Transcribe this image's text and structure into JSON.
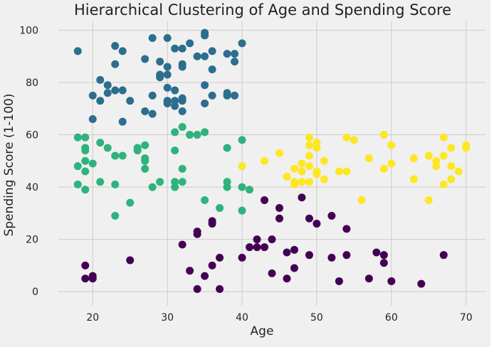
{
  "chart_data": {
    "type": "scatter",
    "title": "Hierarchical Clustering of Age and Spending Score",
    "xlabel": "Age",
    "ylabel": "Spending Score (1-100)",
    "xlim": [
      15.4,
      72.6
    ],
    "ylim": [
      -5.4,
      103.4
    ],
    "xticks": [
      "20",
      "30",
      "40",
      "50",
      "60",
      "70"
    ],
    "xtick_values": [
      20,
      30,
      40,
      50,
      60,
      70
    ],
    "yticks": [
      "0",
      "20",
      "40",
      "60",
      "80",
      "100"
    ],
    "ytick_values": [
      0,
      20,
      40,
      60,
      80,
      100
    ],
    "grid": true,
    "legend": "none",
    "background": "#f0f0f0",
    "gridColor": "#cbcbcb",
    "series": [
      {
        "color": "#2c6e8d",
        "points": [
          [
            18,
            92
          ],
          [
            20,
            75
          ],
          [
            20,
            66
          ],
          [
            21,
            81
          ],
          [
            21,
            73
          ],
          [
            22,
            79
          ],
          [
            22,
            76
          ],
          [
            23,
            94
          ],
          [
            23,
            87
          ],
          [
            23,
            77
          ],
          [
            24,
            92
          ],
          [
            24,
            77
          ],
          [
            24,
            65
          ],
          [
            25,
            73
          ],
          [
            27,
            89
          ],
          [
            27,
            69
          ],
          [
            28,
            97
          ],
          [
            28,
            75
          ],
          [
            28,
            68
          ],
          [
            29,
            88
          ],
          [
            29,
            83
          ],
          [
            29,
            82
          ],
          [
            30,
            97
          ],
          [
            30,
            86
          ],
          [
            30,
            83
          ],
          [
            30,
            78
          ],
          [
            30,
            73
          ],
          [
            30,
            72
          ],
          [
            31,
            93
          ],
          [
            31,
            77
          ],
          [
            31,
            73
          ],
          [
            31,
            71
          ],
          [
            32,
            93
          ],
          [
            32,
            87
          ],
          [
            32,
            86
          ],
          [
            32,
            74
          ],
          [
            32,
            73
          ],
          [
            32,
            69
          ],
          [
            33,
            95
          ],
          [
            34,
            90
          ],
          [
            35,
            99
          ],
          [
            35,
            98
          ],
          [
            35,
            90
          ],
          [
            35,
            79
          ],
          [
            35,
            72
          ],
          [
            36,
            92
          ],
          [
            36,
            85
          ],
          [
            36,
            75
          ],
          [
            38,
            91
          ],
          [
            38,
            76
          ],
          [
            38,
            75
          ],
          [
            39,
            91
          ],
          [
            39,
            88
          ],
          [
            39,
            75
          ],
          [
            40,
            95
          ]
        ]
      },
      {
        "color": "#2eb37c",
        "points": [
          [
            18,
            59
          ],
          [
            18,
            48
          ],
          [
            18,
            41
          ],
          [
            19,
            59
          ],
          [
            19,
            55
          ],
          [
            19,
            54
          ],
          [
            19,
            50
          ],
          [
            19,
            46
          ],
          [
            19,
            39
          ],
          [
            20,
            49
          ],
          [
            21,
            57
          ],
          [
            21,
            42
          ],
          [
            22,
            55
          ],
          [
            23,
            52
          ],
          [
            23,
            41
          ],
          [
            23,
            29
          ],
          [
            24,
            52
          ],
          [
            25,
            34
          ],
          [
            26,
            55
          ],
          [
            26,
            54
          ],
          [
            27,
            56
          ],
          [
            27,
            51
          ],
          [
            27,
            50
          ],
          [
            27,
            47
          ],
          [
            28,
            40
          ],
          [
            29,
            42
          ],
          [
            31,
            61
          ],
          [
            31,
            54
          ],
          [
            31,
            42
          ],
          [
            31,
            40
          ],
          [
            32,
            63
          ],
          [
            32,
            47
          ],
          [
            32,
            42
          ],
          [
            33,
            60
          ],
          [
            34,
            60
          ],
          [
            35,
            61
          ],
          [
            35,
            35
          ],
          [
            37,
            32
          ],
          [
            38,
            55
          ],
          [
            38,
            42
          ],
          [
            38,
            40
          ],
          [
            40,
            58
          ],
          [
            40,
            40
          ],
          [
            40,
            31
          ],
          [
            41,
            39
          ]
        ]
      },
      {
        "color": "#fde725",
        "points": [
          [
            40,
            48
          ],
          [
            43,
            50
          ],
          [
            45,
            53
          ],
          [
            46,
            44
          ],
          [
            47,
            47
          ],
          [
            47,
            42
          ],
          [
            47,
            41
          ],
          [
            48,
            49
          ],
          [
            48,
            46
          ],
          [
            48,
            42
          ],
          [
            49,
            59
          ],
          [
            49,
            56
          ],
          [
            49,
            52
          ],
          [
            49,
            48
          ],
          [
            49,
            42
          ],
          [
            50,
            57
          ],
          [
            50,
            55
          ],
          [
            50,
            46
          ],
          [
            50,
            45
          ],
          [
            51,
            50
          ],
          [
            51,
            43
          ],
          [
            53,
            46
          ],
          [
            54,
            59
          ],
          [
            54,
            46
          ],
          [
            55,
            58
          ],
          [
            56,
            35
          ],
          [
            57,
            51
          ],
          [
            59,
            60
          ],
          [
            59,
            47
          ],
          [
            60,
            56
          ],
          [
            60,
            49
          ],
          [
            63,
            51
          ],
          [
            63,
            43
          ],
          [
            65,
            52
          ],
          [
            65,
            35
          ],
          [
            66,
            50
          ],
          [
            66,
            48
          ],
          [
            67,
            59
          ],
          [
            67,
            52
          ],
          [
            67,
            41
          ],
          [
            68,
            55
          ],
          [
            68,
            48
          ],
          [
            68,
            43
          ],
          [
            69,
            46
          ],
          [
            70,
            56
          ],
          [
            70,
            55
          ]
        ]
      },
      {
        "color": "#440154",
        "points": [
          [
            19,
            10
          ],
          [
            19,
            5
          ],
          [
            20,
            6
          ],
          [
            20,
            5
          ],
          [
            25,
            12
          ],
          [
            32,
            18
          ],
          [
            33,
            8
          ],
          [
            34,
            23
          ],
          [
            34,
            22
          ],
          [
            34,
            1
          ],
          [
            35,
            6
          ],
          [
            36,
            27
          ],
          [
            36,
            26
          ],
          [
            36,
            10
          ],
          [
            37,
            13
          ],
          [
            37,
            1
          ],
          [
            40,
            13
          ],
          [
            41,
            17
          ],
          [
            42,
            20
          ],
          [
            42,
            17
          ],
          [
            43,
            35
          ],
          [
            43,
            17
          ],
          [
            44,
            20
          ],
          [
            44,
            7
          ],
          [
            45,
            32
          ],
          [
            45,
            28
          ],
          [
            46,
            15
          ],
          [
            46,
            5
          ],
          [
            47,
            16
          ],
          [
            47,
            9
          ],
          [
            48,
            36
          ],
          [
            49,
            28
          ],
          [
            49,
            14
          ],
          [
            50,
            26
          ],
          [
            52,
            29
          ],
          [
            52,
            13
          ],
          [
            53,
            4
          ],
          [
            54,
            24
          ],
          [
            54,
            14
          ],
          [
            57,
            5
          ],
          [
            58,
            15
          ],
          [
            59,
            14
          ],
          [
            59,
            11
          ],
          [
            60,
            4
          ],
          [
            64,
            3
          ],
          [
            67,
            14
          ]
        ]
      }
    ]
  }
}
